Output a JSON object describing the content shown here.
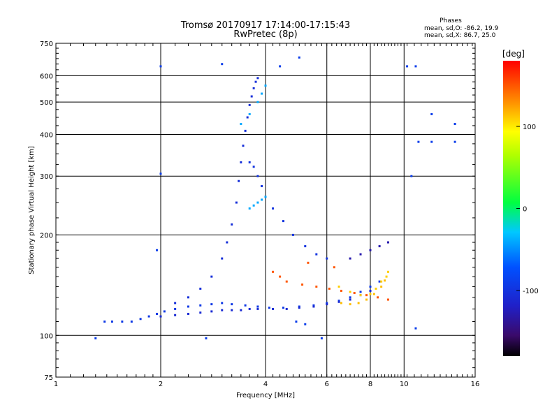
{
  "chart_data": {
    "type": "scatter",
    "title": "Tromsø 20170917 17:14:00-17:15:43",
    "subtitle": "RwPretec (8p)",
    "xlabel": "Frequency [MHz]",
    "ylabel": "Stationary phase Virtual Height [km]",
    "x_scale": "log",
    "y_scale": "log",
    "xlim": [
      1,
      16
    ],
    "ylim": [
      75,
      750
    ],
    "x_ticks": [
      "1",
      "2",
      "4",
      "6",
      "8",
      "10",
      "16"
    ],
    "y_ticks": [
      "75",
      "100",
      "200",
      "300",
      "400",
      "500",
      "600",
      "750"
    ],
    "grid": true,
    "phase_info": {
      "title": "Phases",
      "line_o": "mean, sd,O: -86.2, 19.9",
      "line_x": "mean, sd,X:  86.7, 25.0"
    },
    "colorbar": {
      "label": "[deg]",
      "range": [
        -180,
        180
      ],
      "ticks": [
        "100",
        "0",
        "-100"
      ]
    },
    "traces": [
      {
        "name": "",
        "x": [
          1.38,
          1.45,
          1.55,
          1.65,
          1.75,
          1.85,
          1.95,
          2.05,
          2.2,
          2.4,
          2.6,
          2.8,
          3.0,
          3.2,
          3.5,
          3.8,
          4.1,
          4.5,
          5.0,
          5.5,
          6.0,
          6.5,
          7.0,
          7.5,
          8.0,
          8.5
        ],
        "y": [
          110,
          110,
          110,
          110,
          112,
          114,
          116,
          118,
          120,
          122,
          123,
          124,
          125,
          124,
          123,
          122,
          121,
          121,
          122,
          123,
          125,
          127,
          130,
          135,
          140,
          145
        ],
        "phase": -95
      },
      {
        "name": "",
        "x": [
          2.0,
          2.2,
          2.4,
          2.6,
          2.8,
          3.0,
          3.2,
          3.4,
          3.6,
          3.8,
          4.2,
          4.6,
          5.0,
          5.5,
          6.0,
          6.5,
          7.0,
          7.5,
          8.0
        ],
        "y": [
          114,
          115,
          116,
          117,
          118,
          119,
          119,
          119,
          120,
          120,
          120,
          120,
          121,
          122,
          124,
          126,
          128,
          132,
          136
        ],
        "phase": -110
      },
      {
        "name": "",
        "x": [
          2.2,
          2.4,
          2.6,
          2.8,
          3.0,
          3.1,
          3.2,
          3.3,
          3.35,
          3.4,
          3.45,
          3.5,
          3.55,
          3.6,
          3.65,
          3.7,
          3.75,
          3.8
        ],
        "y": [
          125,
          130,
          138,
          150,
          170,
          190,
          215,
          250,
          290,
          330,
          370,
          410,
          450,
          490,
          520,
          550,
          575,
          590
        ],
        "phase": -105
      },
      {
        "name": "",
        "x": [
          3.6,
          3.7,
          3.8,
          3.9,
          4.0,
          4.2,
          4.5,
          4.8,
          5.2,
          5.6,
          6.0
        ],
        "y": [
          330,
          320,
          300,
          280,
          260,
          240,
          220,
          200,
          185,
          175,
          170
        ],
        "phase": -100
      },
      {
        "name": "",
        "x": [
          3.4,
          3.6,
          3.8,
          3.9,
          4.0
        ],
        "y": [
          430,
          460,
          500,
          530,
          560
        ],
        "phase": -40
      },
      {
        "name": "",
        "x": [
          3.6,
          3.7,
          3.8,
          3.9,
          4.0
        ],
        "y": [
          240,
          245,
          250,
          255,
          260
        ],
        "phase": -40
      },
      {
        "name": "",
        "x": [
          6.5,
          7.0,
          7.5,
          8.0,
          8.3,
          8.6,
          8.9,
          9.0
        ],
        "y": [
          140,
          135,
          132,
          133,
          138,
          145,
          150,
          155
        ],
        "phase": 110
      },
      {
        "name": "",
        "x": [
          6.6,
          7.0,
          7.4,
          7.8,
          8.2,
          8.6,
          8.8
        ],
        "y": [
          125,
          124,
          125,
          128,
          133,
          140,
          146
        ],
        "phase": 115
      },
      {
        "name": "",
        "x": [
          7.0,
          7.5,
          8.0,
          8.5,
          9.0
        ],
        "y": [
          170,
          175,
          180,
          185,
          190
        ],
        "phase": -130
      },
      {
        "name": "",
        "x": [
          1.3,
          2.0,
          2.0,
          3.0,
          4.4,
          5.0,
          4.9,
          5.2,
          10.2,
          10.8,
          12.0,
          14.0,
          14.0,
          12.0,
          11.0,
          10.5,
          5.8,
          2.7,
          1.95,
          10.8
        ],
        "y": [
          98,
          640,
          305,
          650,
          640,
          680,
          110,
          108,
          640,
          640,
          460,
          430,
          380,
          380,
          380,
          300,
          98,
          98,
          180,
          105
        ],
        "phase": -90
      },
      {
        "name": "",
        "x": [
          4.2,
          4.4,
          4.6,
          5.1,
          5.6,
          6.1,
          6.6,
          7.2,
          7.8,
          8.4,
          9.0,
          5.3,
          6.3
        ],
        "y": [
          155,
          150,
          145,
          142,
          140,
          138,
          136,
          134,
          132,
          130,
          128,
          165,
          160
        ],
        "phase": 150
      }
    ]
  }
}
